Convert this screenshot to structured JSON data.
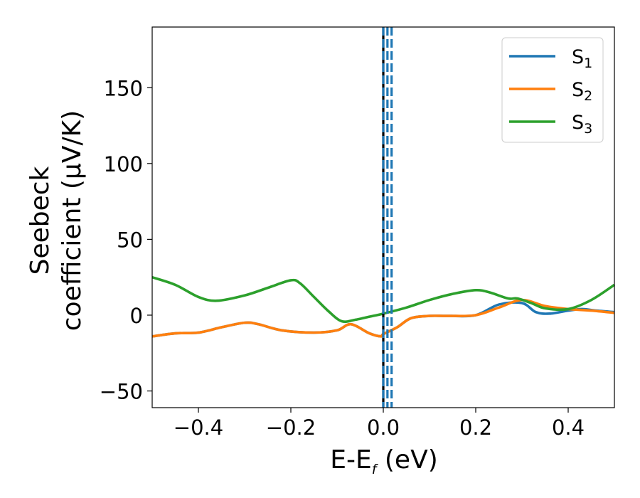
{
  "chart_data": {
    "type": "line",
    "title": "",
    "xlabel": {
      "main": "E-E",
      "sub": "f",
      "tail": " (eV)"
    },
    "ylabel": {
      "line1": "Seebeck",
      "line2": "coefficient  (μV/K)"
    },
    "xlim": [
      -0.5,
      0.5
    ],
    "ylim": [
      -61,
      190
    ],
    "xticks": [
      -0.4,
      -0.2,
      0.0,
      0.2,
      0.4
    ],
    "xtick_labels": [
      "−0.4",
      "−0.2",
      "0.0",
      "0.2",
      "0.4"
    ],
    "yticks": [
      -50,
      0,
      50,
      100,
      150
    ],
    "ytick_labels": [
      "−50",
      "0",
      "50",
      "100",
      "150"
    ],
    "grid": false,
    "legend_position": "top-right",
    "series": [
      {
        "name": "S",
        "sub": "1",
        "color": "#1f77b4",
        "x": [
          -0.5,
          -0.45,
          -0.4,
          -0.35,
          -0.3,
          -0.27,
          -0.22,
          -0.15,
          -0.1,
          -0.07,
          -0.03,
          -0.005,
          0.0,
          0.03,
          0.06,
          0.1,
          0.14,
          0.2,
          0.25,
          0.3,
          0.33,
          0.36,
          0.4,
          0.43,
          0.46,
          0.5
        ],
        "y": [
          -14,
          -12,
          -11.5,
          -8,
          -5,
          -6,
          -10,
          -11.5,
          -10,
          -6,
          -12,
          -14,
          -12.5,
          -8,
          -2,
          -0.5,
          -0.5,
          0,
          7,
          8,
          2,
          1,
          3,
          4,
          3,
          2
        ]
      },
      {
        "name": "S",
        "sub": "2",
        "color": "#ff7f0e",
        "x": [
          -0.5,
          -0.45,
          -0.4,
          -0.35,
          -0.3,
          -0.27,
          -0.22,
          -0.15,
          -0.1,
          -0.07,
          -0.03,
          -0.005,
          0.0,
          0.03,
          0.06,
          0.1,
          0.14,
          0.2,
          0.25,
          0.3,
          0.35,
          0.4,
          0.45,
          0.5
        ],
        "y": [
          -14,
          -12,
          -11.5,
          -8,
          -5,
          -6,
          -10,
          -11.5,
          -10,
          -6,
          -12,
          -14,
          -12.5,
          -8,
          -2,
          -0.5,
          -0.5,
          0,
          5,
          10,
          6,
          4,
          3,
          1.5
        ]
      },
      {
        "name": "S",
        "sub": "3",
        "color": "#2ca02c",
        "x": [
          -0.5,
          -0.45,
          -0.4,
          -0.36,
          -0.3,
          -0.25,
          -0.2,
          -0.18,
          -0.15,
          -0.12,
          -0.09,
          -0.06,
          -0.03,
          0.0,
          0.05,
          0.1,
          0.15,
          0.2,
          0.23,
          0.27,
          0.29,
          0.32,
          0.35,
          0.4,
          0.45,
          0.5
        ],
        "y": [
          25,
          20,
          12,
          9.5,
          13,
          18,
          23,
          21,
          12,
          3,
          -4,
          -3,
          -1,
          1,
          5,
          10,
          14,
          16.5,
          15,
          11,
          11,
          8,
          4.5,
          4,
          10,
          20
        ]
      }
    ],
    "vlines": [
      {
        "x": 0.0,
        "color": "#000000",
        "dash": "solid"
      },
      {
        "x": 0.0,
        "color": "#1f77b4",
        "dash": "dashed"
      },
      {
        "x": 0.009,
        "color": "#1f77b4",
        "dash": "dashed"
      },
      {
        "x": 0.018,
        "color": "#1f77b4",
        "dash": "dashed"
      }
    ]
  }
}
